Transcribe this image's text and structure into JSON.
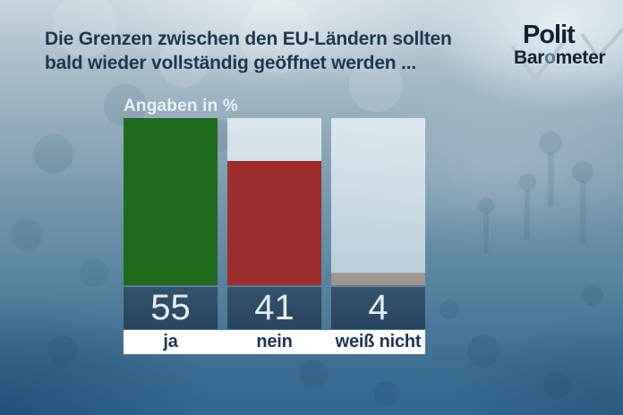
{
  "title": {
    "line1": "Die Grenzen zwischen den EU-Ländern sollten",
    "line2": "bald wieder vollständig geöffnet werden ..."
  },
  "logo": {
    "top": "Polit",
    "bottom_prefix": "Bar",
    "bottom_o": "o",
    "bottom_suffix": "meter"
  },
  "chart_data": {
    "type": "bar",
    "title": "Die Grenzen zwischen den EU-Ländern sollten bald wieder vollständig geöffnet werden ...",
    "units_label": "Angaben in %",
    "categories": [
      "ja",
      "nein",
      "weiß nicht"
    ],
    "values": [
      55,
      41,
      4
    ],
    "bar_colors": [
      "#1e6b1d",
      "#9e2e2e",
      "#9f978f"
    ],
    "ylim": [
      0,
      55
    ],
    "grid": false,
    "legend": "none",
    "value_labels_shown": true
  },
  "colors": {
    "title_text": "#1d3753",
    "units_text": "#eef4f8",
    "value_box": "#2c4b68",
    "value_text": "#e6edf2",
    "label_band": "#ffffff",
    "label_text": "#1c3650",
    "column_background": "#d5e2ea",
    "logo_text": "#16222f",
    "logo_o": "#587590",
    "logo_check": "#b7c3cb"
  }
}
